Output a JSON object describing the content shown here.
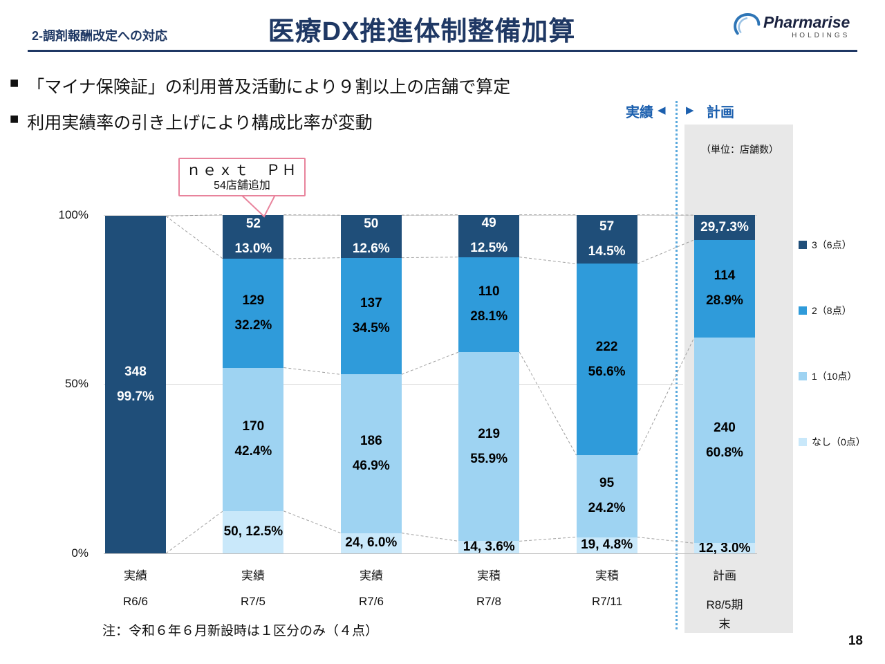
{
  "header": {
    "section_label": "2-調剤報酬改定への対応",
    "title": "医療DX推進体制整備加算",
    "logo_name": "Pharmarise",
    "logo_sub": "HOLDINGS"
  },
  "bullets": {
    "marker": "■",
    "line1": "「マイナ保険証」の利用普及活動により９割以上の店舗で算定",
    "line2": "利用実績率の引き上げにより構成比率が変動"
  },
  "divider": {
    "actual_label": "実績",
    "plan_label": "計画",
    "left_arrow": "◀",
    "right_arrow": "▶"
  },
  "unit_label": "（単位：店舗数）",
  "callout": {
    "title": "ｎｅｘｔ　ＰＨ",
    "subtitle": "54店舗追加"
  },
  "note": "注：令和６年６月新設時は１区分のみ（４点）",
  "page_number": "18",
  "chart_data": {
    "type": "bar",
    "stacked": true,
    "unit": "店舗数",
    "ylim": [
      0,
      100
    ],
    "grid": true,
    "legend_position": "right",
    "y_ticks": [
      {
        "label": "100%",
        "pct": 100
      },
      {
        "label": "50%",
        "pct": 50
      },
      {
        "label": "0%",
        "pct": 0
      }
    ],
    "legend": [
      {
        "key": "three",
        "label": "3（6点）",
        "color": "#1f4e79"
      },
      {
        "key": "two",
        "label": "2（8点）",
        "color": "#2f9bda"
      },
      {
        "key": "one",
        "label": "1（10点）",
        "color": "#9ed3f2"
      },
      {
        "key": "none",
        "label": "なし（0点）",
        "color": "#c9e8fa"
      }
    ],
    "columns": [
      {
        "label": "実績",
        "period": "R6/6",
        "period2": ""
      },
      {
        "label": "実績",
        "period": "R7/5",
        "period2": ""
      },
      {
        "label": "実績",
        "period": "R7/6",
        "period2": ""
      },
      {
        "label": "実積",
        "period": "R7/8",
        "period2": ""
      },
      {
        "label": "実積",
        "period": "R7/11",
        "period2": ""
      },
      {
        "label": "計画",
        "period": "R8/5期",
        "period2": "末"
      }
    ],
    "bars": [
      {
        "segments": [
          {
            "cat": "three",
            "value": 348,
            "pct": 99.7,
            "lines": [
              "348",
              "99.7%"
            ],
            "text": "white"
          }
        ]
      },
      {
        "segments": [
          {
            "cat": "none",
            "value": 50,
            "pct": 12.5,
            "lines": [
              "50, 12.5%"
            ],
            "text": "black"
          },
          {
            "cat": "one",
            "value": 170,
            "pct": 42.4,
            "lines": [
              "170",
              "42.4%"
            ],
            "text": "black"
          },
          {
            "cat": "two",
            "value": 129,
            "pct": 32.2,
            "lines": [
              "129",
              "32.2%"
            ],
            "text": "black"
          },
          {
            "cat": "three",
            "value": 52,
            "pct": 13.0,
            "lines": [
              "52",
              "13.0%"
            ],
            "text": "white"
          }
        ]
      },
      {
        "segments": [
          {
            "cat": "none",
            "value": 24,
            "pct": 6.0,
            "lines": [
              "24, 6.0%"
            ],
            "text": "black"
          },
          {
            "cat": "one",
            "value": 186,
            "pct": 46.9,
            "lines": [
              "186",
              "46.9%"
            ],
            "text": "black"
          },
          {
            "cat": "two",
            "value": 137,
            "pct": 34.5,
            "lines": [
              "137",
              "34.5%"
            ],
            "text": "black"
          },
          {
            "cat": "three",
            "value": 50,
            "pct": 12.6,
            "lines": [
              "50",
              "12.6%"
            ],
            "text": "white"
          }
        ]
      },
      {
        "segments": [
          {
            "cat": "none",
            "value": 14,
            "pct": 3.6,
            "lines": [
              "14, 3.6%"
            ],
            "text": "black"
          },
          {
            "cat": "one",
            "value": 219,
            "pct": 55.9,
            "lines": [
              "219",
              "55.9%"
            ],
            "text": "black"
          },
          {
            "cat": "two",
            "value": 110,
            "pct": 28.1,
            "lines": [
              "110",
              "28.1%"
            ],
            "text": "black"
          },
          {
            "cat": "three",
            "value": 49,
            "pct": 12.5,
            "lines": [
              "49",
              "12.5%"
            ],
            "text": "white"
          }
        ]
      },
      {
        "segments": [
          {
            "cat": "none",
            "value": 19,
            "pct": 4.8,
            "lines": [
              "19, 4.8%"
            ],
            "text": "black"
          },
          {
            "cat": "one",
            "value": 95,
            "pct": 24.2,
            "lines": [
              "95",
              "24.2%"
            ],
            "text": "black"
          },
          {
            "cat": "two",
            "value": 222,
            "pct": 56.6,
            "lines": [
              "222",
              "56.6%"
            ],
            "text": "black"
          },
          {
            "cat": "three",
            "value": 57,
            "pct": 14.5,
            "lines": [
              "57",
              "14.5%"
            ],
            "text": "white"
          }
        ]
      },
      {
        "segments": [
          {
            "cat": "none",
            "value": 12,
            "pct": 3.0,
            "lines": [
              "12, 3.0%"
            ],
            "text": "black"
          },
          {
            "cat": "one",
            "value": 240,
            "pct": 60.8,
            "lines": [
              "240",
              "60.8%"
            ],
            "text": "black"
          },
          {
            "cat": "two",
            "value": 114,
            "pct": 28.9,
            "lines": [
              "114",
              "28.9%"
            ],
            "text": "black"
          },
          {
            "cat": "three",
            "value": 29,
            "pct": 7.3,
            "lines": [
              "29,7.3%"
            ],
            "text": "white"
          }
        ]
      }
    ]
  }
}
